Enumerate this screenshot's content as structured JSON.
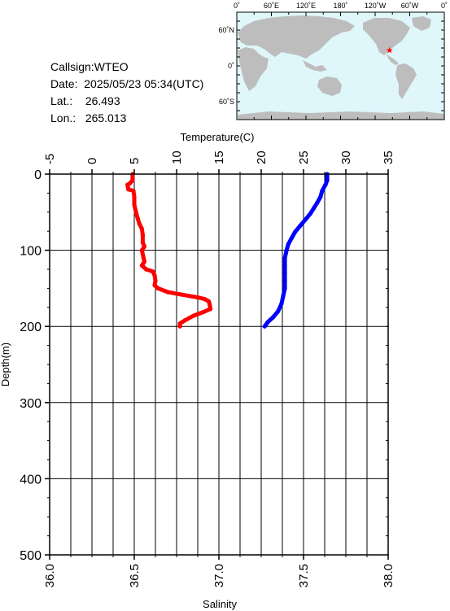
{
  "info": {
    "callsign_label": "Callsign:",
    "callsign": "WTEO",
    "date_label": "Date:",
    "date": "2025/05/23 05:34(UTC)",
    "lat_label": "Lat.:",
    "lat": "26.493",
    "lon_label": "Lon.:",
    "lon": "265.013"
  },
  "map": {
    "top_ticks": [
      "0˚",
      "60˚E",
      "120˚E",
      "180˚",
      "120˚W",
      "60˚W",
      "0˚"
    ],
    "left_ticks": [
      "60˚N",
      "0˚",
      "60˚S"
    ],
    "ocean_color": "#dff6fb",
    "land_color": "#bdbdbd",
    "marker": {
      "lat": 26.493,
      "lon": 265.013,
      "symbol": "★",
      "color": "#ff0000"
    }
  },
  "chart_data": {
    "type": "line",
    "title": "",
    "ylabel": "Depth(m)",
    "ylim": [
      0,
      500
    ],
    "yticks": [
      "0",
      "100",
      "200",
      "300",
      "400",
      "500"
    ],
    "x_top": {
      "label": "Temperature(C)",
      "lim": [
        -5,
        35
      ],
      "ticks": [
        "-5",
        "0",
        "5",
        "10",
        "15",
        "20",
        "25",
        "30",
        "35"
      ]
    },
    "x_bottom": {
      "label": "Salinity",
      "lim": [
        36.0,
        38.0
      ],
      "ticks": [
        "36.0",
        "36.5",
        "37.0",
        "37.5",
        "38.0"
      ]
    },
    "grid": true,
    "series": [
      {
        "quantity": "temperature",
        "axis": "top",
        "color": "#ff0000",
        "points": [
          [
            4.8,
            0
          ],
          [
            4.8,
            8
          ],
          [
            4.5,
            12
          ],
          [
            4.2,
            14
          ],
          [
            4.3,
            20
          ],
          [
            4.9,
            22
          ],
          [
            5.0,
            30
          ],
          [
            5.0,
            40
          ],
          [
            5.2,
            50
          ],
          [
            5.4,
            58
          ],
          [
            5.6,
            65
          ],
          [
            5.9,
            72
          ],
          [
            6.0,
            80
          ],
          [
            6.0,
            90
          ],
          [
            6.2,
            95
          ],
          [
            5.9,
            100
          ],
          [
            6.1,
            110
          ],
          [
            6.2,
            115
          ],
          [
            5.9,
            120
          ],
          [
            6.4,
            125
          ],
          [
            7.2,
            128
          ],
          [
            7.4,
            133
          ],
          [
            7.5,
            140
          ],
          [
            7.4,
            146
          ],
          [
            7.8,
            150
          ],
          [
            9.0,
            155
          ],
          [
            10.5,
            158
          ],
          [
            12.5,
            162
          ],
          [
            13.3,
            164
          ],
          [
            13.8,
            167
          ],
          [
            13.9,
            171
          ],
          [
            14.0,
            177
          ],
          [
            13.2,
            181
          ],
          [
            12.0,
            186
          ],
          [
            11.0,
            192
          ],
          [
            10.4,
            196
          ],
          [
            10.4,
            200
          ]
        ]
      },
      {
        "quantity": "salinity",
        "axis": "bottom",
        "color": "#0000ff",
        "points": [
          [
            37.64,
            0
          ],
          [
            37.64,
            8
          ],
          [
            37.63,
            14
          ],
          [
            37.61,
            22
          ],
          [
            37.6,
            30
          ],
          [
            37.58,
            38
          ],
          [
            37.56,
            45
          ],
          [
            37.54,
            52
          ],
          [
            37.51,
            60
          ],
          [
            37.48,
            68
          ],
          [
            37.45,
            76
          ],
          [
            37.43,
            84
          ],
          [
            37.41,
            92
          ],
          [
            37.4,
            100
          ],
          [
            37.39,
            110
          ],
          [
            37.39,
            120
          ],
          [
            37.39,
            130
          ],
          [
            37.39,
            140
          ],
          [
            37.39,
            150
          ],
          [
            37.38,
            160
          ],
          [
            37.37,
            170
          ],
          [
            37.35,
            180
          ],
          [
            37.32,
            188
          ],
          [
            37.29,
            194
          ],
          [
            37.27,
            200
          ]
        ]
      }
    ]
  }
}
